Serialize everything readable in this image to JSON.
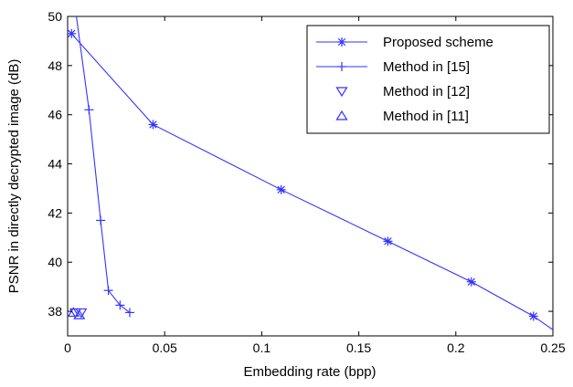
{
  "chart_data": {
    "type": "line",
    "xlabel": "Embedding rate (bpp)",
    "ylabel": "PSNR in directly decrypted image (dB)",
    "xlim": [
      0,
      0.25
    ],
    "ylim": [
      37,
      50
    ],
    "xticks": [
      0,
      0.05,
      0.1,
      0.15,
      0.2,
      0.25
    ],
    "xtick_labels": [
      "0",
      "0.05",
      "0.1",
      "0.15",
      "0.2",
      "0.25"
    ],
    "yticks": [
      38,
      40,
      42,
      44,
      46,
      48,
      50
    ],
    "ytick_labels": [
      "38",
      "40",
      "42",
      "44",
      "46",
      "48",
      "50"
    ],
    "grid": false,
    "legend_position": "top-right",
    "color": "#3333ff",
    "series": [
      {
        "name": "Proposed scheme",
        "marker": "asterisk",
        "line": true,
        "x": [
          0.002,
          0.044,
          0.11,
          0.165,
          0.208,
          0.24,
          0.25
        ],
        "y": [
          49.3,
          45.6,
          42.95,
          40.85,
          39.2,
          37.8,
          37.25
        ],
        "marked": [
          true,
          true,
          true,
          true,
          true,
          true,
          false
        ]
      },
      {
        "name": "Method in [15]",
        "marker": "plus",
        "line": true,
        "x": [
          0.004,
          0.011,
          0.017,
          0.021,
          0.027,
          0.032
        ],
        "y": [
          50.3,
          46.2,
          41.7,
          38.85,
          38.25,
          37.95
        ],
        "marked": [
          false,
          true,
          true,
          true,
          true,
          true
        ]
      },
      {
        "name": "Method in [12]",
        "marker": "triangle-down",
        "line": false,
        "x": [
          0.004,
          0.007
        ],
        "y": [
          37.95,
          37.95
        ]
      },
      {
        "name": "Method in [11]",
        "marker": "triangle-up",
        "line": false,
        "x": [
          0.003,
          0.006
        ],
        "y": [
          37.95,
          37.85
        ]
      }
    ]
  }
}
